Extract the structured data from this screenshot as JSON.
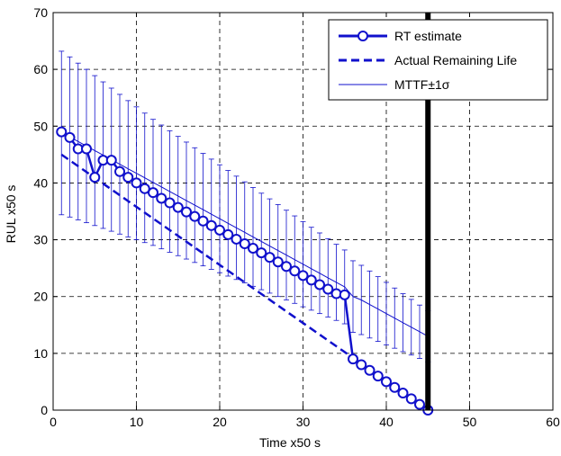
{
  "chart_data": {
    "type": "line",
    "xlabel": "Time x50 s",
    "ylabel": "RUL x50 s",
    "xlim": [
      0,
      60
    ],
    "ylim": [
      0,
      70
    ],
    "xticks": [
      0,
      10,
      20,
      30,
      40,
      50,
      60
    ],
    "yticks": [
      0,
      10,
      20,
      30,
      40,
      50,
      60,
      70
    ],
    "grid": true,
    "legend_position": "top-right",
    "colors": {
      "series": "#1010cc",
      "failure_line": "#000000"
    },
    "series": [
      {
        "name": "RT estimate",
        "style": "solid-circle-markers",
        "x": [
          1,
          2,
          3,
          4,
          5,
          6,
          7,
          8,
          9,
          10,
          11,
          12,
          13,
          14,
          15,
          16,
          17,
          18,
          19,
          20,
          21,
          22,
          23,
          24,
          25,
          26,
          27,
          28,
          29,
          30,
          31,
          32,
          33,
          34,
          35,
          36,
          37,
          38,
          39,
          40,
          41,
          42,
          43,
          44,
          45
        ],
        "y": [
          49,
          48,
          46,
          46,
          41,
          44,
          44,
          42,
          41,
          40,
          39,
          38.3,
          37.3,
          36.5,
          35.7,
          34.9,
          34.1,
          33.3,
          32.5,
          31.7,
          30.9,
          30.1,
          29.3,
          28.5,
          27.7,
          26.9,
          26.1,
          25.3,
          24.5,
          23.7,
          22.9,
          22.1,
          21.3,
          20.5,
          20.3,
          9,
          8,
          7,
          6,
          5,
          4,
          3,
          2,
          1,
          0
        ]
      },
      {
        "name": "Actual Remaining Life",
        "style": "dashed",
        "x": [
          1,
          45
        ],
        "y": [
          45,
          0
        ]
      },
      {
        "name": "MTTF±1σ",
        "style": "thin-errorbar",
        "x": [
          1,
          2,
          3,
          4,
          5,
          6,
          7,
          8,
          9,
          10,
          11,
          12,
          13,
          14,
          15,
          16,
          17,
          18,
          19,
          20,
          21,
          22,
          23,
          24,
          25,
          26,
          27,
          28,
          29,
          30,
          31,
          32,
          33,
          34,
          35,
          36,
          37,
          38,
          39,
          40,
          41,
          42,
          43,
          44,
          45
        ],
        "y": [
          48.8,
          48.1,
          47.3,
          46.5,
          45.7,
          44.9,
          44.1,
          43.3,
          42.5,
          41.7,
          40.9,
          40.1,
          39.3,
          38.5,
          37.7,
          36.9,
          36.1,
          35.3,
          34.5,
          33.7,
          32.9,
          32.1,
          31.3,
          30.5,
          29.7,
          28.9,
          28.1,
          27.3,
          26.5,
          25.7,
          24.9,
          24.1,
          23.3,
          22.5,
          21.7,
          20.0,
          19.4,
          18.6,
          17.8,
          17.0,
          16.2,
          15.4,
          14.6,
          13.8,
          13.0
        ],
        "yerr": [
          14.4,
          14.1,
          13.8,
          13.5,
          13.2,
          12.9,
          12.6,
          12.3,
          12.0,
          11.7,
          11.4,
          11.1,
          10.9,
          10.7,
          10.5,
          10.3,
          10.1,
          9.9,
          9.7,
          9.5,
          9.3,
          9.1,
          8.9,
          8.7,
          8.5,
          8.3,
          8.1,
          7.9,
          7.7,
          7.5,
          7.3,
          7.1,
          6.9,
          6.7,
          6.5,
          6.3,
          6.1,
          5.9,
          5.7,
          5.5,
          5.3,
          5.1,
          4.9,
          4.7,
          4.5
        ]
      }
    ],
    "vertical_line": {
      "x": 45
    }
  }
}
